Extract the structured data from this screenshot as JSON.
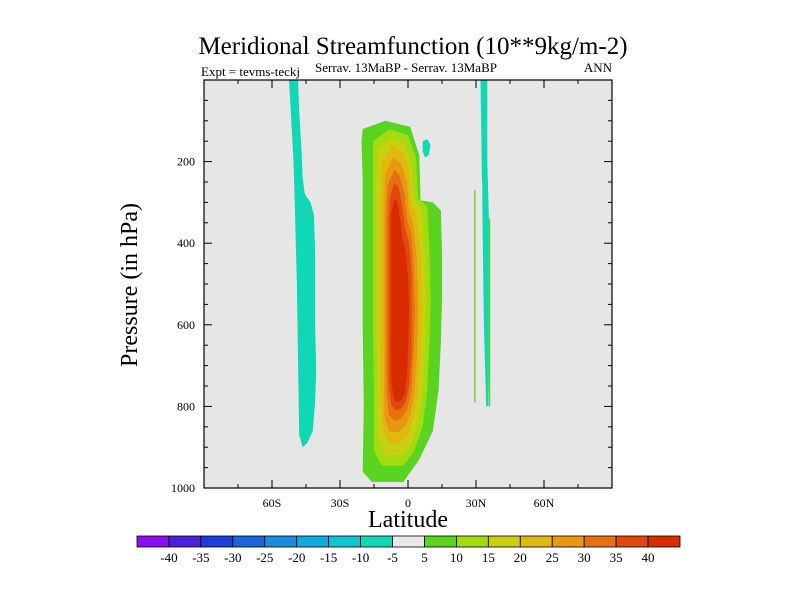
{
  "chart_data": {
    "type": "heatmap",
    "title": "Meridional Streamfunction (10**9kg/m-2)",
    "subtitle_left": "Expt = tevms-teckj",
    "subtitle_center": "Serrav.  13MaBP - Serrav.  13MaBP",
    "subtitle_right": "ANN",
    "xlabel": "Latitude",
    "ylabel": "Pressure (in hPa)",
    "xlim": [
      -90,
      90
    ],
    "ylim": [
      0,
      1000
    ],
    "y_reversed": true,
    "x_ticks": [
      {
        "value": -60,
        "label": "60S"
      },
      {
        "value": -30,
        "label": "30S"
      },
      {
        "value": 0,
        "label": "0"
      },
      {
        "value": 30,
        "label": "30N"
      },
      {
        "value": 60,
        "label": "60N"
      }
    ],
    "y_ticks": [
      {
        "value": 200,
        "label": "200"
      },
      {
        "value": 400,
        "label": "400"
      },
      {
        "value": 600,
        "label": "600"
      },
      {
        "value": 800,
        "label": "800"
      },
      {
        "value": 1000,
        "label": "1000"
      }
    ],
    "colorbar": {
      "labels": [
        "-40",
        "-35",
        "-30",
        "-25",
        "-20",
        "-15",
        "-10",
        "-5",
        "5",
        "10",
        "15",
        "20",
        "25",
        "30",
        "35",
        "40"
      ],
      "colors": [
        "#8a10f0",
        "#4a20d8",
        "#1e3cd8",
        "#1a64dc",
        "#1a8cdc",
        "#10aadc",
        "#10c4d0",
        "#10d8b4",
        "#e8e8e8",
        "#5ad420",
        "#a0dc10",
        "#c8d010",
        "#e0b810",
        "#e89810",
        "#e87010",
        "#e04810",
        "#d82c00"
      ]
    },
    "regions": [
      {
        "name": "southern-negative-cell",
        "level": -10,
        "points": [
          [
            -52.5,
            0
          ],
          [
            -48.5,
            0
          ],
          [
            -48,
            80
          ],
          [
            -47,
            170
          ],
          [
            -46.5,
            240
          ],
          [
            -45.5,
            280
          ],
          [
            -43,
            300
          ],
          [
            -41.5,
            330
          ],
          [
            -41,
            420
          ],
          [
            -41,
            600
          ],
          [
            -40.5,
            710
          ],
          [
            -41,
            790
          ],
          [
            -42,
            860
          ],
          [
            -44.5,
            890
          ],
          [
            -46.5,
            900
          ],
          [
            -48,
            870
          ],
          [
            -48.5,
            700
          ],
          [
            -49,
            500
          ],
          [
            -49.5,
            400
          ],
          [
            -50,
            300
          ],
          [
            -50.5,
            200
          ],
          [
            -51.5,
            100
          ]
        ]
      },
      {
        "name": "small-negative-blob",
        "level": -10,
        "points": [
          [
            6.5,
            150
          ],
          [
            8.5,
            145
          ],
          [
            10,
            160
          ],
          [
            9,
            185
          ],
          [
            7.5,
            190
          ],
          [
            6.5,
            175
          ]
        ]
      },
      {
        "name": "northern-negative-strip",
        "level": -10,
        "points": [
          [
            32,
            0
          ],
          [
            35,
            0
          ],
          [
            35,
            200
          ],
          [
            36,
            400
          ],
          [
            36,
            600
          ],
          [
            35.5,
            800
          ],
          [
            34.5,
            800
          ],
          [
            33.5,
            600
          ],
          [
            33,
            400
          ],
          [
            32.5,
            200
          ]
        ]
      },
      {
        "name": "equatorial-cell-5",
        "level": 5,
        "points": [
          [
            -20,
            120
          ],
          [
            -10,
            100
          ],
          [
            1,
            115
          ],
          [
            5,
            185
          ],
          [
            5.5,
            295
          ],
          [
            11,
            300
          ],
          [
            14.5,
            320
          ],
          [
            15,
            420
          ],
          [
            15,
            540
          ],
          [
            14.5,
            640
          ],
          [
            13.5,
            760
          ],
          [
            11,
            860
          ],
          [
            5,
            930
          ],
          [
            -2,
            985
          ],
          [
            -16,
            985
          ],
          [
            -20,
            960
          ],
          [
            -19.5,
            800
          ],
          [
            -20,
            600
          ],
          [
            -20,
            400
          ],
          [
            -20,
            250
          ],
          [
            -20.5,
            150
          ]
        ]
      },
      {
        "name": "equatorial-cell-10",
        "level": 10,
        "points": [
          [
            -15.5,
            150
          ],
          [
            -8,
            120
          ],
          [
            0,
            135
          ],
          [
            3.5,
            190
          ],
          [
            4.5,
            290
          ],
          [
            8.5,
            310
          ],
          [
            9.5,
            420
          ],
          [
            10,
            540
          ],
          [
            9.5,
            640
          ],
          [
            8.5,
            760
          ],
          [
            6.5,
            850
          ],
          [
            2.5,
            910
          ],
          [
            -2,
            945
          ],
          [
            -11.5,
            945
          ],
          [
            -15,
            910
          ],
          [
            -15,
            780
          ],
          [
            -15.5,
            600
          ],
          [
            -15.5,
            400
          ],
          [
            -15.5,
            240
          ]
        ]
      },
      {
        "name": "equatorial-cell-15",
        "level": 15,
        "points": [
          [
            -13.5,
            170
          ],
          [
            -7.5,
            140
          ],
          [
            -1.5,
            155
          ],
          [
            1.5,
            200
          ],
          [
            2.5,
            290
          ],
          [
            6,
            320
          ],
          [
            7.5,
            430
          ],
          [
            8,
            540
          ],
          [
            7.5,
            650
          ],
          [
            6.5,
            760
          ],
          [
            4.5,
            840
          ],
          [
            1.5,
            895
          ],
          [
            -3,
            920
          ],
          [
            -10,
            920
          ],
          [
            -13.5,
            880
          ],
          [
            -13.5,
            750
          ],
          [
            -14,
            600
          ],
          [
            -14,
            420
          ],
          [
            -14,
            260
          ]
        ]
      },
      {
        "name": "equatorial-cell-20",
        "level": 20,
        "points": [
          [
            -11.5,
            200
          ],
          [
            -7,
            160
          ],
          [
            -2.5,
            175
          ],
          [
            0.5,
            220
          ],
          [
            1.5,
            300
          ],
          [
            4,
            340
          ],
          [
            5.5,
            440
          ],
          [
            6,
            550
          ],
          [
            5.5,
            660
          ],
          [
            4.5,
            760
          ],
          [
            2.5,
            830
          ],
          [
            0,
            870
          ],
          [
            -3.5,
            890
          ],
          [
            -8.5,
            890
          ],
          [
            -11.5,
            850
          ],
          [
            -12,
            740
          ],
          [
            -12,
            600
          ],
          [
            -12,
            430
          ],
          [
            -12,
            290
          ]
        ]
      },
      {
        "name": "equatorial-cell-25",
        "level": 25,
        "points": [
          [
            -10,
            230
          ],
          [
            -6.5,
            190
          ],
          [
            -3,
            205
          ],
          [
            -0.5,
            250
          ],
          [
            0.5,
            320
          ],
          [
            2.5,
            360
          ],
          [
            4,
            450
          ],
          [
            4.5,
            560
          ],
          [
            4,
            670
          ],
          [
            3,
            760
          ],
          [
            1,
            820
          ],
          [
            -1.5,
            850
          ],
          [
            -5,
            865
          ],
          [
            -8.5,
            860
          ],
          [
            -10.5,
            820
          ],
          [
            -10.5,
            720
          ],
          [
            -10.5,
            580
          ],
          [
            -10.5,
            440
          ],
          [
            -10.5,
            320
          ]
        ]
      },
      {
        "name": "equatorial-cell-30",
        "level": 30,
        "points": [
          [
            -9,
            260
          ],
          [
            -6,
            220
          ],
          [
            -3.5,
            235
          ],
          [
            -1.5,
            280
          ],
          [
            -0.5,
            340
          ],
          [
            1.5,
            380
          ],
          [
            2.5,
            460
          ],
          [
            3,
            560
          ],
          [
            2.5,
            670
          ],
          [
            1.5,
            760
          ],
          [
            -0.5,
            810
          ],
          [
            -3,
            830
          ],
          [
            -6,
            835
          ],
          [
            -8.5,
            820
          ],
          [
            -9.5,
            760
          ],
          [
            -9.5,
            650
          ],
          [
            -9.5,
            520
          ],
          [
            -9.5,
            400
          ],
          [
            -9.5,
            320
          ]
        ]
      },
      {
        "name": "equatorial-cell-35",
        "level": 35,
        "points": [
          [
            -8,
            290
          ],
          [
            -6,
            250
          ],
          [
            -4,
            265
          ],
          [
            -2.5,
            310
          ],
          [
            -1.5,
            360
          ],
          [
            0.5,
            400
          ],
          [
            1.5,
            470
          ],
          [
            1.5,
            560
          ],
          [
            1.5,
            670
          ],
          [
            0.5,
            750
          ],
          [
            -1,
            790
          ],
          [
            -3,
            805
          ],
          [
            -5.5,
            810
          ],
          [
            -7.5,
            795
          ],
          [
            -8.5,
            740
          ],
          [
            -8.5,
            640
          ],
          [
            -8.5,
            520
          ],
          [
            -8.5,
            410
          ],
          [
            -8.5,
            340
          ]
        ]
      },
      {
        "name": "equatorial-cell-40",
        "level": 40,
        "points": [
          [
            -7.5,
            330
          ],
          [
            -6,
            290
          ],
          [
            -4.5,
            300
          ],
          [
            -3.5,
            340
          ],
          [
            -2.5,
            390
          ],
          [
            -1,
            420
          ],
          [
            0,
            480
          ],
          [
            0.5,
            560
          ],
          [
            0,
            660
          ],
          [
            -0.5,
            730
          ],
          [
            -1.5,
            770
          ],
          [
            -3,
            785
          ],
          [
            -5,
            790
          ],
          [
            -6.5,
            775
          ],
          [
            -7.5,
            730
          ],
          [
            -7.5,
            640
          ],
          [
            -7.5,
            540
          ],
          [
            -7.5,
            440
          ],
          [
            -7.5,
            370
          ]
        ]
      }
    ],
    "thin_lines": [
      {
        "name": "thin-green-line-1",
        "level": 5,
        "points": [
          [
            29.5,
            270
          ],
          [
            29.5,
            790
          ]
        ]
      },
      {
        "name": "thin-cyan-line",
        "level": -5,
        "points": [
          [
            32.5,
            250
          ],
          [
            32,
            800
          ]
        ]
      },
      {
        "name": "thin-green-line-2",
        "level": 5,
        "points": [
          [
            36,
            340
          ],
          [
            36,
            800
          ]
        ]
      }
    ]
  }
}
